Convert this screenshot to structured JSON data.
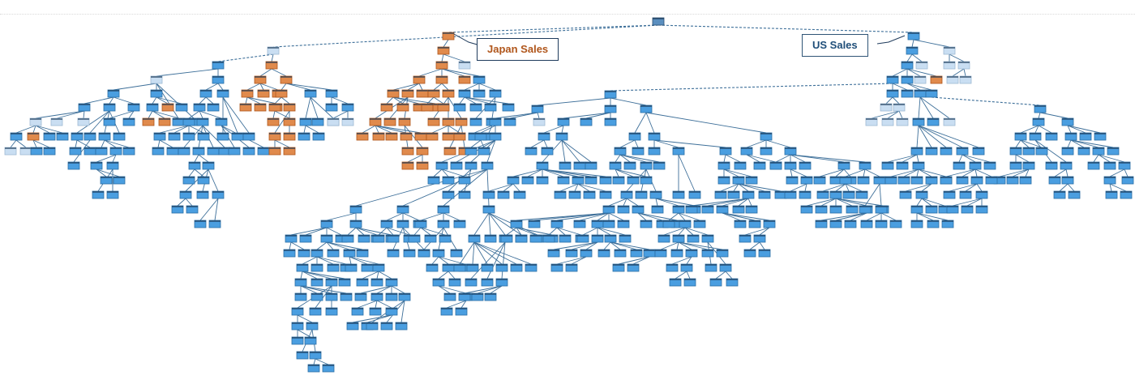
{
  "callouts": {
    "japan": "Japan Sales",
    "us": "US Sales"
  },
  "colors": {
    "node_blue": "#4a9ee0",
    "node_blue_border": "#2b6fa6",
    "node_orange": "#e08a4c",
    "node_orange_border": "#b0561b",
    "node_faded": "#c9def2",
    "edge": "#3d6f99",
    "callout_border": "#1f3b5c"
  },
  "diagram": {
    "type": "decomposition-tree",
    "highlighted_branches": [
      "Japan Sales",
      "US Sales"
    ]
  }
}
